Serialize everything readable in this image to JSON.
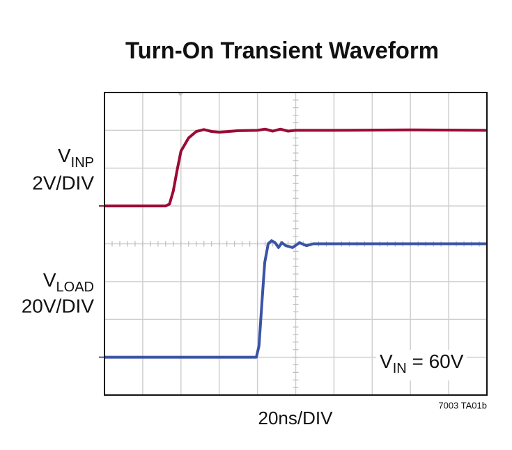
{
  "chart_data": {
    "type": "line",
    "title": "Turn-On Transient Waveform",
    "xlabel": "20ns/DIV",
    "figure_id": "7003 TA01b",
    "annotation": {
      "main": "V",
      "sub": "IN",
      "rest": " = 60V"
    },
    "xlim": [
      0,
      10
    ],
    "ylim": [
      0,
      8
    ],
    "xticks": [
      0,
      1,
      2,
      3,
      4,
      5,
      6,
      7,
      8,
      9,
      10
    ],
    "yticks": [
      0,
      1,
      2,
      3,
      4,
      5,
      6,
      7,
      8
    ],
    "grid": true,
    "series": [
      {
        "name": "V",
        "subscript": "INP",
        "scale": "2V/DIV",
        "color": "#9b0a35",
        "ground": 5,
        "x": [
          0,
          1.6,
          1.7,
          1.8,
          1.9,
          2.0,
          2.2,
          2.4,
          2.6,
          2.8,
          3.0,
          3.5,
          4.0,
          4.2,
          4.4,
          4.6,
          4.8,
          5.0,
          6.0,
          8.0,
          10
        ],
        "values": [
          5.0,
          5.0,
          5.05,
          5.4,
          5.95,
          6.45,
          6.8,
          6.97,
          7.02,
          6.97,
          6.95,
          6.99,
          7.0,
          7.03,
          6.98,
          7.03,
          6.98,
          7.0,
          7.0,
          7.01,
          7.0
        ]
      },
      {
        "name": "V",
        "subscript": "LOAD",
        "scale": "20V/DIV",
        "color": "#3a53a4",
        "ground": 1,
        "x": [
          0,
          2.0,
          3.97,
          4.04,
          4.12,
          4.19,
          4.28,
          4.37,
          4.46,
          4.55,
          4.64,
          4.74,
          4.92,
          5.1,
          5.28,
          5.46,
          7.0,
          10
        ],
        "values": [
          1.0,
          1.0,
          1.0,
          1.3,
          2.5,
          3.5,
          4.0,
          4.08,
          4.03,
          3.9,
          4.03,
          3.95,
          3.9,
          4.03,
          3.95,
          4.0,
          4.0,
          4.0
        ]
      }
    ]
  }
}
